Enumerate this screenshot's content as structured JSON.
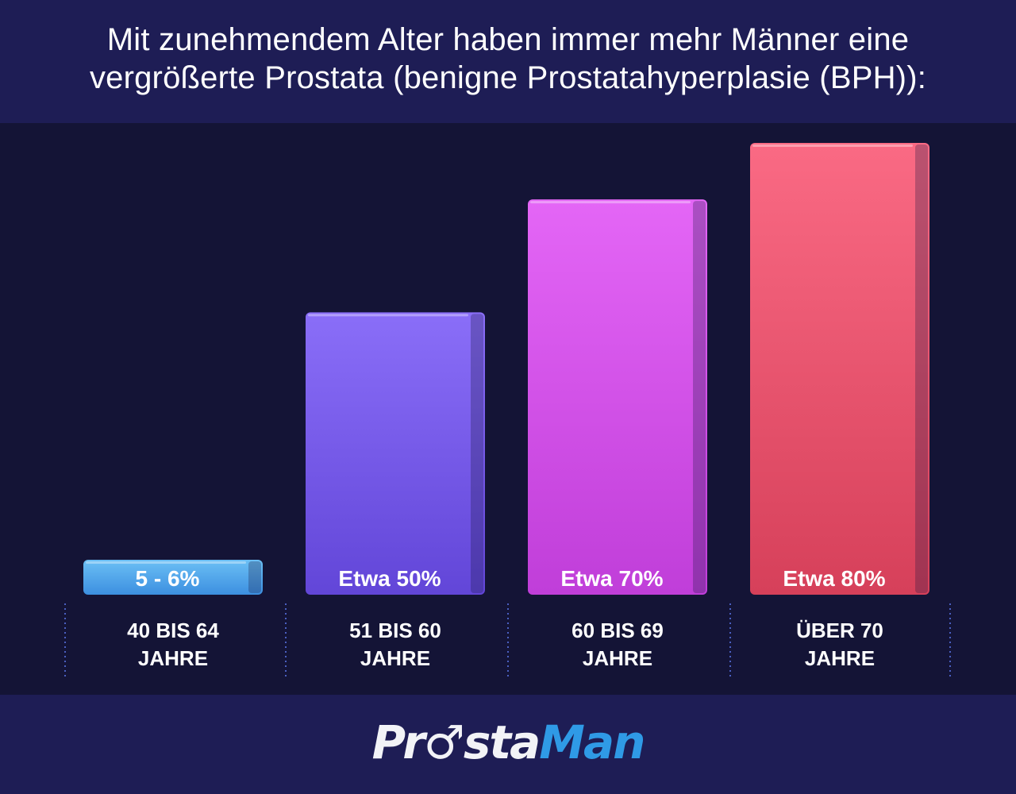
{
  "title_lines": [
    "Mit zunehmendem Alter haben immer mehr Männer eine",
    "vergrößerte Prostata (benigne Prostatahyperplasie (BPH)):"
  ],
  "logo": {
    "part1": "Prostа",
    "part2": "Man",
    "full_text": "ProstaMan",
    "icon": "male-symbol-icon"
  },
  "colors": {
    "background": "#141436",
    "header_footer": "#1e1d55",
    "text": "#ffffff",
    "logo_blue": "#2f9ae6"
  },
  "chart_data": {
    "type": "bar",
    "title": "Mit zunehmendem Alter haben immer mehr Männer eine vergrößerte Prostata (benigne Prostatahyperplasie (BPH)):",
    "xlabel": "",
    "ylabel": "",
    "ylim": [
      0,
      80
    ],
    "grid": false,
    "legend": "none",
    "categories": [
      [
        "40 BIS 64",
        "JAHRE"
      ],
      [
        "51 BIS 60",
        "JAHRE"
      ],
      [
        "60 BIS 69",
        "JAHRE"
      ],
      [
        "ÜBER 70",
        "JAHRE"
      ]
    ],
    "values": [
      6,
      50,
      70,
      80
    ],
    "data_labels": [
      "5 - 6%",
      "Etwa 50%",
      "Etwa 70%",
      "Etwa 80%"
    ],
    "bar_colors": [
      [
        "#6cc0f5",
        "#3c8fe0"
      ],
      [
        "#8a6ef8",
        "#6246d8"
      ],
      [
        "#e466f6",
        "#c03ed9"
      ],
      [
        "#fa6a84",
        "#d6405a"
      ]
    ]
  }
}
